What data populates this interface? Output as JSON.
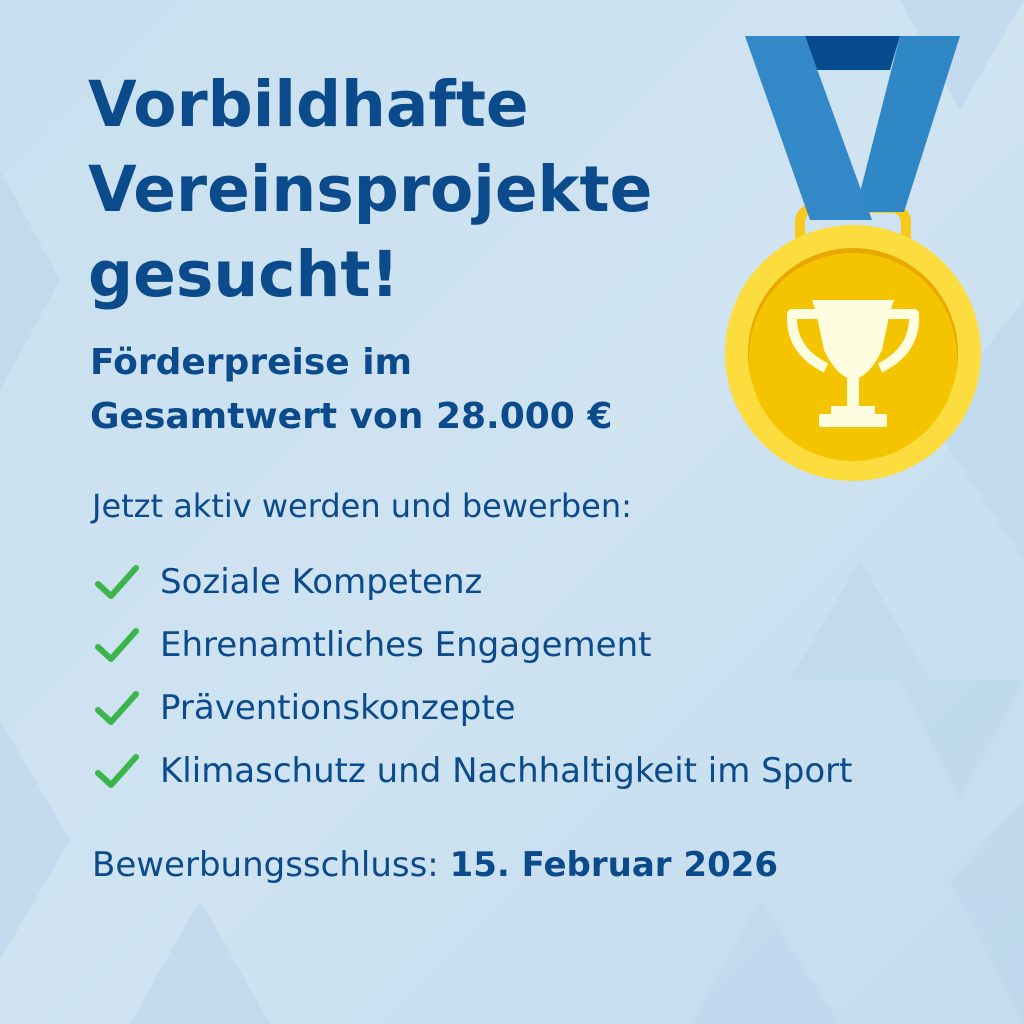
{
  "poster": {
    "title_lines": [
      "Vorbildhafte",
      "Vereinsprojekte",
      "gesucht!"
    ],
    "subtitle_lines": [
      "Förderpreise im",
      "Gesamtwert von 28.000 €"
    ],
    "intro": "Jetzt aktiv werden und bewerben:",
    "criteria": [
      {
        "label": "Soziale Kompetenz",
        "icon": "check-icon"
      },
      {
        "label": "Ehrenamtliches Engagement",
        "icon": "check-icon"
      },
      {
        "label": "Präventionskonzepte",
        "icon": "check-icon"
      },
      {
        "label": "Klimaschutz und Nachhaltigkeit im Sport",
        "icon": "check-icon"
      }
    ],
    "deadline_label": "Bewerbungsschluss:",
    "deadline_date": "15. Februar 2026",
    "medal_icon": "gold-medal-trophy-icon"
  },
  "colors": {
    "text": "#0b4a8b",
    "check": "#3cb54a",
    "ribbon": "#2f87c6",
    "ribbon_dark": "#054b8d",
    "gold_outer": "#fddc3e",
    "gold_inner": "#f4c400",
    "trophy": "#fffde0",
    "background": "#cbe1f1"
  }
}
